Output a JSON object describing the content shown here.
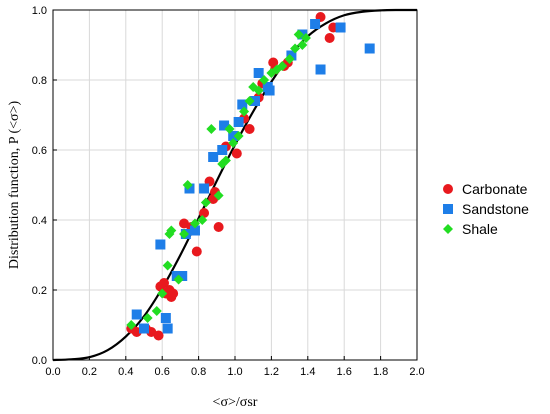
{
  "chart_data": {
    "type": "scatter",
    "xlabel": "<σ>/σsr",
    "ylabel": "Distribution function, P (<σ>)",
    "xlim": [
      0,
      2
    ],
    "ylim": [
      0,
      1
    ],
    "xticks": [
      "0.0",
      "0.2",
      "0.4",
      "0.6",
      "0.8",
      "1.0",
      "1.2",
      "1.4",
      "1.6",
      "1.8",
      "2.0"
    ],
    "yticks": [
      "0.0",
      "0.2",
      "0.4",
      "0.6",
      "0.8",
      "1.0"
    ],
    "grid": true,
    "legend_position": "right",
    "curve": {
      "color": "#000000",
      "points": [
        [
          0.0,
          0.0
        ],
        [
          0.1,
          0.002
        ],
        [
          0.2,
          0.008
        ],
        [
          0.3,
          0.028
        ],
        [
          0.4,
          0.067
        ],
        [
          0.5,
          0.125
        ],
        [
          0.6,
          0.205
        ],
        [
          0.7,
          0.3
        ],
        [
          0.8,
          0.405
        ],
        [
          0.9,
          0.512
        ],
        [
          1.0,
          0.615
        ],
        [
          1.1,
          0.71
        ],
        [
          1.2,
          0.795
        ],
        [
          1.3,
          0.868
        ],
        [
          1.4,
          0.925
        ],
        [
          1.5,
          0.962
        ],
        [
          1.6,
          0.985
        ],
        [
          1.7,
          0.995
        ],
        [
          1.8,
          0.999
        ],
        [
          1.9,
          1.0
        ],
        [
          2.0,
          1.0
        ]
      ]
    },
    "series": [
      {
        "name": "Carbonate",
        "marker": "circle",
        "color": "#e8191e",
        "points": [
          [
            0.43,
            0.09
          ],
          [
            0.46,
            0.08
          ],
          [
            0.51,
            0.09
          ],
          [
            0.54,
            0.08
          ],
          [
            0.58,
            0.07
          ],
          [
            0.59,
            0.21
          ],
          [
            0.61,
            0.22
          ],
          [
            0.62,
            0.19
          ],
          [
            0.64,
            0.2
          ],
          [
            0.65,
            0.18
          ],
          [
            0.66,
            0.19
          ],
          [
            0.72,
            0.39
          ],
          [
            0.76,
            0.38
          ],
          [
            0.79,
            0.31
          ],
          [
            0.83,
            0.42
          ],
          [
            0.86,
            0.51
          ],
          [
            0.88,
            0.46
          ],
          [
            0.89,
            0.48
          ],
          [
            0.91,
            0.38
          ],
          [
            0.95,
            0.61
          ],
          [
            1.0,
            0.64
          ],
          [
            1.01,
            0.59
          ],
          [
            1.05,
            0.69
          ],
          [
            1.08,
            0.66
          ],
          [
            1.1,
            0.74
          ],
          [
            1.13,
            0.75
          ],
          [
            1.15,
            0.79
          ],
          [
            1.21,
            0.85
          ],
          [
            1.22,
            0.83
          ],
          [
            1.27,
            0.84
          ],
          [
            1.29,
            0.85
          ],
          [
            1.47,
            0.98
          ],
          [
            1.52,
            0.92
          ],
          [
            1.54,
            0.95
          ]
        ]
      },
      {
        "name": "Sandstone",
        "marker": "square",
        "color": "#1e7ee8",
        "points": [
          [
            0.46,
            0.13
          ],
          [
            0.5,
            0.09
          ],
          [
            0.59,
            0.33
          ],
          [
            0.62,
            0.12
          ],
          [
            0.63,
            0.09
          ],
          [
            0.68,
            0.24
          ],
          [
            0.71,
            0.24
          ],
          [
            0.73,
            0.36
          ],
          [
            0.75,
            0.49
          ],
          [
            0.78,
            0.37
          ],
          [
            0.83,
            0.49
          ],
          [
            0.88,
            0.58
          ],
          [
            0.93,
            0.6
          ],
          [
            0.94,
            0.67
          ],
          [
            0.99,
            0.64
          ],
          [
            1.02,
            0.68
          ],
          [
            1.04,
            0.73
          ],
          [
            1.11,
            0.74
          ],
          [
            1.13,
            0.82
          ],
          [
            1.18,
            0.78
          ],
          [
            1.19,
            0.77
          ],
          [
            1.31,
            0.87
          ],
          [
            1.37,
            0.93
          ],
          [
            1.44,
            0.96
          ],
          [
            1.47,
            0.83
          ],
          [
            1.58,
            0.95
          ],
          [
            1.74,
            0.89
          ]
        ]
      },
      {
        "name": "Shale",
        "marker": "diamond",
        "color": "#22dd22",
        "points": [
          [
            0.43,
            0.1
          ],
          [
            0.52,
            0.12
          ],
          [
            0.57,
            0.14
          ],
          [
            0.6,
            0.19
          ],
          [
            0.63,
            0.27
          ],
          [
            0.64,
            0.36
          ],
          [
            0.65,
            0.37
          ],
          [
            0.69,
            0.23
          ],
          [
            0.72,
            0.36
          ],
          [
            0.74,
            0.5
          ],
          [
            0.78,
            0.39
          ],
          [
            0.82,
            0.4
          ],
          [
            0.84,
            0.45
          ],
          [
            0.87,
            0.66
          ],
          [
            0.91,
            0.47
          ],
          [
            0.93,
            0.56
          ],
          [
            0.95,
            0.57
          ],
          [
            0.97,
            0.66
          ],
          [
            0.99,
            0.62
          ],
          [
            1.02,
            0.64
          ],
          [
            1.05,
            0.71
          ],
          [
            1.08,
            0.74
          ],
          [
            1.1,
            0.78
          ],
          [
            1.13,
            0.77
          ],
          [
            1.16,
            0.8
          ],
          [
            1.2,
            0.82
          ],
          [
            1.23,
            0.83
          ],
          [
            1.26,
            0.84
          ],
          [
            1.3,
            0.86
          ],
          [
            1.33,
            0.89
          ],
          [
            1.35,
            0.93
          ],
          [
            1.37,
            0.9
          ],
          [
            1.39,
            0.92
          ]
        ]
      }
    ]
  }
}
